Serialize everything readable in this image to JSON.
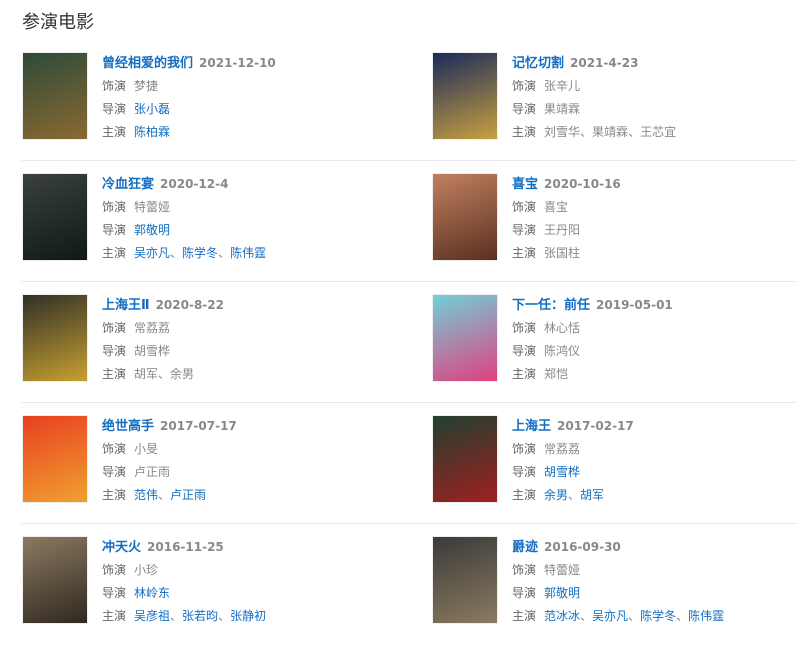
{
  "section_title": "参演电影",
  "labels": {
    "role": "饰演",
    "director": "导演",
    "cast": "主演"
  },
  "movies": [
    {
      "title": "曾经相爱的我们",
      "date": "2021-12-10",
      "role": "梦捷",
      "director": [
        {
          "name": "张小磊",
          "link": true
        }
      ],
      "cast": [
        {
          "name": "陈柏霖",
          "link": true
        }
      ],
      "poster": [
        "#2d4a3a",
        "#8a6a30"
      ]
    },
    {
      "title": "记忆切割",
      "date": "2021-4-23",
      "role": "张辛儿",
      "director": [
        {
          "name": "果靖霖",
          "link": false
        }
      ],
      "cast": [
        {
          "name": "刘雪华",
          "link": false
        },
        {
          "name": "果靖霖",
          "link": false
        },
        {
          "name": "王芯宜",
          "link": false
        }
      ],
      "poster": [
        "#1a2a5a",
        "#c8a040"
      ]
    },
    {
      "title": "冷血狂宴",
      "date": "2020-12-4",
      "role": "特蕾娅",
      "director": [
        {
          "name": "郭敬明",
          "link": true
        }
      ],
      "cast": [
        {
          "name": "吴亦凡",
          "link": true
        },
        {
          "name": "陈学冬",
          "link": true
        },
        {
          "name": "陈伟霆",
          "link": true
        }
      ],
      "poster": [
        "#3a4040",
        "#101818"
      ]
    },
    {
      "title": "喜宝",
      "date": "2020-10-16",
      "role": "喜宝",
      "director": [
        {
          "name": "王丹阳",
          "link": false
        }
      ],
      "cast": [
        {
          "name": "张国柱",
          "link": false
        }
      ],
      "poster": [
        "#c08060",
        "#5a3020"
      ]
    },
    {
      "title": "上海王Ⅱ",
      "date": "2020-8-22",
      "role": "常荔荔",
      "director": [
        {
          "name": "胡雪桦",
          "link": false
        }
      ],
      "cast": [
        {
          "name": "胡军",
          "link": false
        },
        {
          "name": "余男",
          "link": false
        }
      ],
      "poster": [
        "#303028",
        "#c8a030"
      ]
    },
    {
      "title": "下一任：前任",
      "date": "2019-05-01",
      "role": "林心恬",
      "director": [
        {
          "name": "陈鸿仪",
          "link": false
        }
      ],
      "cast": [
        {
          "name": "郑恺",
          "link": false
        }
      ],
      "poster": [
        "#70d0d8",
        "#e04080"
      ]
    },
    {
      "title": "绝世高手",
      "date": "2017-07-17",
      "role": "小旻",
      "director": [
        {
          "name": "卢正雨",
          "link": false
        }
      ],
      "cast": [
        {
          "name": "范伟",
          "link": true
        },
        {
          "name": "卢正雨",
          "link": true
        }
      ],
      "poster": [
        "#e84020",
        "#f0a030"
      ]
    },
    {
      "title": "上海王",
      "date": "2017-02-17",
      "role": "常荔荔",
      "director": [
        {
          "name": "胡雪桦",
          "link": true
        }
      ],
      "cast": [
        {
          "name": "余男",
          "link": true
        },
        {
          "name": "胡军",
          "link": true
        }
      ],
      "poster": [
        "#204030",
        "#a02020"
      ]
    },
    {
      "title": "冲天火",
      "date": "2016-11-25",
      "role": "小珍",
      "director": [
        {
          "name": "林岭东",
          "link": true
        }
      ],
      "cast": [
        {
          "name": "吴彦祖",
          "link": true
        },
        {
          "name": "张若昀",
          "link": true
        },
        {
          "name": "张静初",
          "link": true
        }
      ],
      "poster": [
        "#8a7a60",
        "#302820"
      ]
    },
    {
      "title": "爵迹",
      "date": "2016-09-30",
      "role": "特蕾娅",
      "director": [
        {
          "name": "郭敬明",
          "link": true
        }
      ],
      "cast": [
        {
          "name": "范冰冰",
          "link": true
        },
        {
          "name": "吴亦凡",
          "link": true
        },
        {
          "name": "陈学冬",
          "link": true
        },
        {
          "name": "陈伟霆",
          "link": true
        }
      ],
      "poster": [
        "#3a3a3a",
        "#8a7a60"
      ]
    }
  ]
}
